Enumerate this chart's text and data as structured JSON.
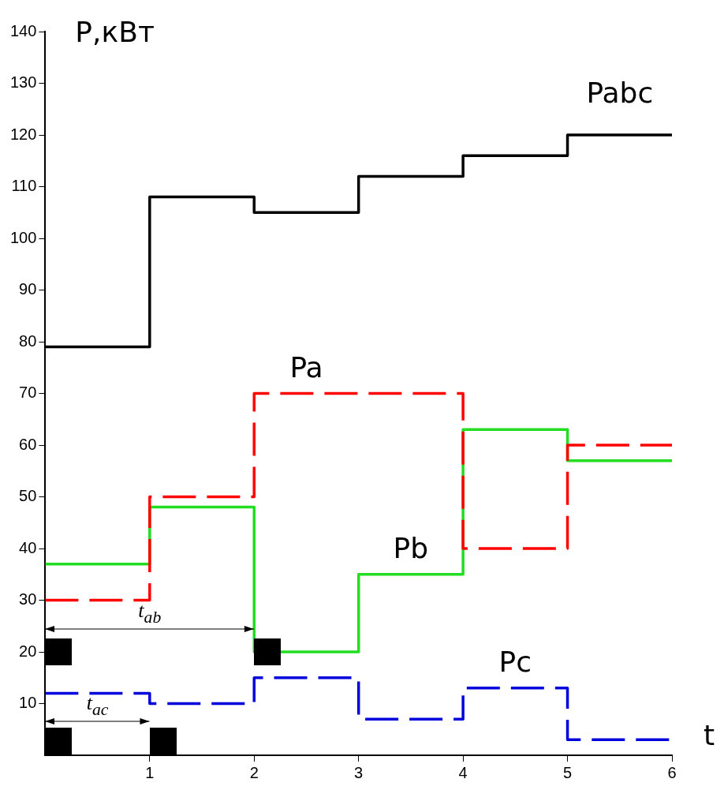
{
  "chart_data": {
    "type": "step",
    "ylabel": "P,кВт",
    "xlabel": "t",
    "x": [
      0,
      1,
      2,
      3,
      4,
      5,
      6
    ],
    "series": [
      {
        "name": "Pabc",
        "color": "#000000",
        "line_style": "solid",
        "values": [
          79,
          108,
          105,
          112,
          116,
          120,
          120
        ]
      },
      {
        "name": "Pa",
        "color": "#ff0000",
        "line_style": "dashed",
        "values": [
          30,
          50,
          70,
          70,
          40,
          60,
          60
        ]
      },
      {
        "name": "Pb",
        "color": "#22dd22",
        "line_style": "solid",
        "values": [
          37,
          48,
          20,
          35,
          63,
          57,
          57
        ]
      },
      {
        "name": "Pc",
        "color": "#0000dd",
        "line_style": "dashed",
        "values": [
          12,
          10,
          15,
          7,
          13,
          3,
          3
        ]
      }
    ],
    "xlim": [
      0,
      6
    ],
    "xticks": [
      1,
      2,
      3,
      4,
      5,
      6
    ],
    "ylim": [
      0,
      140
    ],
    "yticks": [
      10,
      20,
      30,
      40,
      50,
      60,
      70,
      80,
      90,
      100,
      110,
      120,
      130,
      140
    ],
    "grid": false,
    "legend": false,
    "marker": "none",
    "annotations": [
      "t$_{ab}$",
      "t$_{ac}$"
    ]
  }
}
